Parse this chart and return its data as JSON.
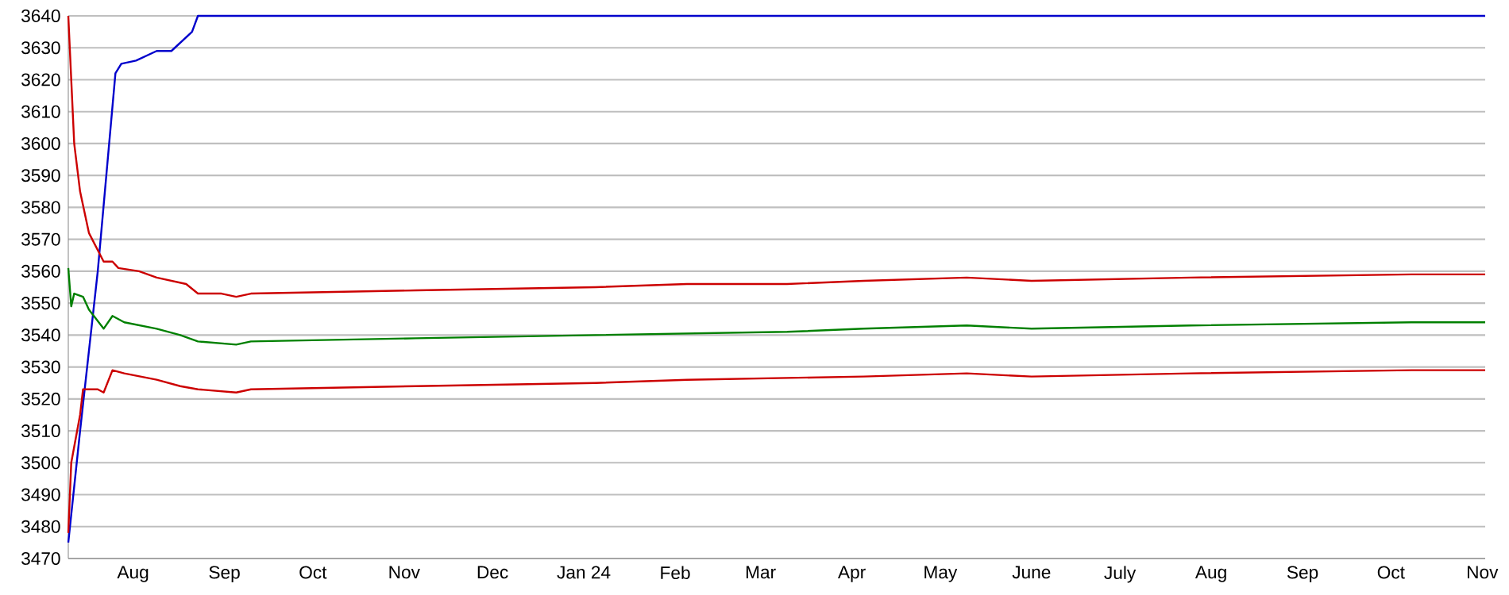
{
  "chart_data": {
    "type": "line",
    "xlim": [
      "2023-07-10",
      "2024-11-02"
    ],
    "ylim": [
      3470,
      3640
    ],
    "yticks": [
      3470,
      3480,
      3490,
      3500,
      3510,
      3520,
      3530,
      3540,
      3550,
      3560,
      3570,
      3580,
      3590,
      3600,
      3610,
      3620,
      3630,
      3640
    ],
    "xticks": [
      {
        "value": "2023-08-01",
        "label": "Aug"
      },
      {
        "value": "2023-09-01",
        "label": "Sep"
      },
      {
        "value": "2023-10-01",
        "label": "Oct"
      },
      {
        "value": "2023-11-01",
        "label": "Nov"
      },
      {
        "value": "2023-12-01",
        "label": "Dec"
      },
      {
        "value": "2024-01-01",
        "label": "Jan 24"
      },
      {
        "value": "2024-02-01",
        "label": "Feb"
      },
      {
        "value": "2024-03-01",
        "label": "Mar"
      },
      {
        "value": "2024-04-01",
        "label": "Apr"
      },
      {
        "value": "2024-05-01",
        "label": "May"
      },
      {
        "value": "2024-06-01",
        "label": "June"
      },
      {
        "value": "2024-07-01",
        "label": "July"
      },
      {
        "value": "2024-08-01",
        "label": "Aug"
      },
      {
        "value": "2024-09-01",
        "label": "Sep"
      },
      {
        "value": "2024-10-01",
        "label": "Oct"
      },
      {
        "value": "2024-11-01",
        "label": "Nov"
      }
    ],
    "grid": "y",
    "marker": "none",
    "line_style": "solid",
    "series": [
      {
        "color": "#0000cc",
        "x": [
          "2023-07-10",
          "2023-07-14",
          "2023-07-20",
          "2023-07-26",
          "2023-07-28",
          "2023-08-02",
          "2023-08-09",
          "2023-08-14",
          "2023-08-21",
          "2023-08-23",
          "2024-11-02"
        ],
        "values": [
          3475,
          3510,
          3560,
          3622,
          3625,
          3626,
          3629,
          3629,
          3635,
          3640,
          3640
        ]
      },
      {
        "color": "#cc0000",
        "x": [
          "2023-07-10",
          "2023-07-12",
          "2023-07-14",
          "2023-07-17",
          "2023-07-22",
          "2023-07-25",
          "2023-07-27",
          "2023-08-03",
          "2023-08-09",
          "2023-08-19",
          "2023-08-23",
          "2023-08-31",
          "2023-09-05",
          "2023-09-10",
          "2023-11-05",
          "2024-01-05",
          "2024-02-05",
          "2024-03-10",
          "2024-04-05",
          "2024-05-10",
          "2024-06-01",
          "2024-07-25",
          "2024-10-08",
          "2024-11-02"
        ],
        "values": [
          3640,
          3600,
          3585,
          3572,
          3563,
          3563,
          3561,
          3560,
          3558,
          3556,
          3553,
          3553,
          3552,
          3553,
          3554,
          3555,
          3556,
          3556,
          3557,
          3558,
          3557,
          3558,
          3559,
          3559
        ]
      },
      {
        "color": "#008000",
        "x": [
          "2023-07-10",
          "2023-07-11",
          "2023-07-12",
          "2023-07-15",
          "2023-07-17",
          "2023-07-22",
          "2023-07-25",
          "2023-07-29",
          "2023-08-09",
          "2023-08-17",
          "2023-08-23",
          "2023-09-05",
          "2023-09-10",
          "2023-11-05",
          "2024-01-05",
          "2024-03-10",
          "2024-04-05",
          "2024-05-10",
          "2024-06-01",
          "2024-07-25",
          "2024-10-08",
          "2024-11-02"
        ],
        "values": [
          3561,
          3549,
          3553,
          3552,
          3548,
          3542,
          3546,
          3544,
          3542,
          3540,
          3538,
          3537,
          3538,
          3539,
          3540,
          3541,
          3542,
          3543,
          3542,
          3543,
          3544,
          3544
        ]
      },
      {
        "color": "#cc0000",
        "x": [
          "2023-07-10",
          "2023-07-11",
          "2023-07-14",
          "2023-07-15",
          "2023-07-20",
          "2023-07-22",
          "2023-07-25",
          "2023-07-29",
          "2023-08-09",
          "2023-08-17",
          "2023-08-23",
          "2023-09-05",
          "2023-09-10",
          "2023-11-05",
          "2024-01-05",
          "2024-02-05",
          "2024-04-05",
          "2024-05-10",
          "2024-06-01",
          "2024-07-25",
          "2024-10-08",
          "2024-11-02"
        ],
        "values": [
          3478,
          3500,
          3515,
          3523,
          3523,
          3522,
          3529,
          3528,
          3526,
          3524,
          3523,
          3522,
          3523,
          3524,
          3525,
          3526,
          3527,
          3528,
          3527,
          3528,
          3529,
          3529
        ]
      }
    ]
  }
}
